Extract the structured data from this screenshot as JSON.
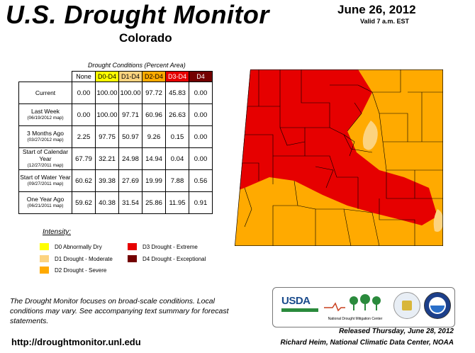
{
  "header": {
    "title": "U.S. Drought Monitor",
    "state": "Colorado",
    "date": "June 26, 2012",
    "valid": "Valid 7 a.m. EST"
  },
  "table": {
    "caption": "Drought Conditions (Percent Area)",
    "columns": [
      "None",
      "D0-D4",
      "D1-D4",
      "D2-D4",
      "D3-D4",
      "D4"
    ],
    "column_colors": [
      "#ffffff",
      "#ffff00",
      "#fcd37f",
      "#ffaa00",
      "#e60000",
      "#730000"
    ],
    "column_text_colors": [
      "#000000",
      "#000000",
      "#000000",
      "#000000",
      "#ffffff",
      "#ffffff"
    ],
    "rows": [
      {
        "label": "Current",
        "sublabel": "",
        "values": [
          "0.00",
          "100.00",
          "100.00",
          "97.72",
          "45.83",
          "0.00"
        ]
      },
      {
        "label": "Last Week",
        "sublabel": "(06/19/2012 map)",
        "values": [
          "0.00",
          "100.00",
          "97.71",
          "60.96",
          "26.63",
          "0.00"
        ]
      },
      {
        "label": "3 Months Ago",
        "sublabel": "(03/27/2012 map)",
        "values": [
          "2.25",
          "97.75",
          "50.97",
          "9.26",
          "0.15",
          "0.00"
        ]
      },
      {
        "label": "Start of Calendar Year",
        "sublabel": "(12/27/2011 map)",
        "values": [
          "67.79",
          "32.21",
          "24.98",
          "14.94",
          "0.04",
          "0.00"
        ]
      },
      {
        "label": "Start of Water Year",
        "sublabel": "(09/27/2011 map)",
        "values": [
          "60.62",
          "39.38",
          "27.69",
          "19.99",
          "7.88",
          "0.56"
        ]
      },
      {
        "label": "One Year Ago",
        "sublabel": "(06/21/2011 map)",
        "values": [
          "59.62",
          "40.38",
          "31.54",
          "25.86",
          "11.95",
          "0.91"
        ]
      }
    ]
  },
  "legend": {
    "title": "Intensity:",
    "items": [
      {
        "label": "D0 Abnormally Dry",
        "color": "#ffff00"
      },
      {
        "label": "D1 Drought - Moderate",
        "color": "#fcd37f"
      },
      {
        "label": "D2 Drought - Severe",
        "color": "#ffaa00"
      },
      {
        "label": "D3 Drought - Extreme",
        "color": "#e60000"
      },
      {
        "label": "D4 Drought - Exceptional",
        "color": "#730000"
      }
    ]
  },
  "footer": {
    "note": "The Drought Monitor focuses on broad-scale conditions. Local conditions may vary. See accompanying text summary for forecast statements.",
    "url": "http://droughtmonitor.unl.edu",
    "released": "Released Thursday, June 28, 2012",
    "author": "Richard Heim, National Climatic Data Center, NOAA"
  },
  "logos": {
    "usda": "USDA",
    "ndmc": "National Drought Mitigation Center"
  },
  "map": {
    "colors": {
      "d1": "#fcd37f",
      "d2": "#ffaa00",
      "d3": "#e60000",
      "border": "#000000"
    }
  }
}
